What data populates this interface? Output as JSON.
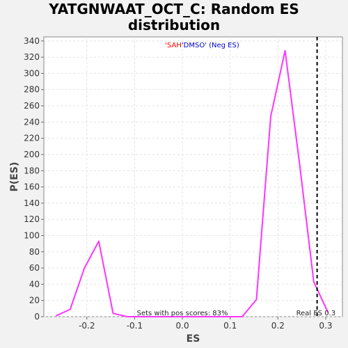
{
  "chart_data": {
    "type": "line",
    "title_lines": [
      "YATGNWAAT_OCT_C: Random ES",
      "distribution"
    ],
    "subtitle": {
      "part1": "'SAH",
      "part2": "'DMSO' (Neg ES)",
      "color1": "#ff0000",
      "color2": "#0000cc"
    },
    "xlabel": "ES",
    "ylabel": "P(ES)",
    "xlim": [
      -0.29,
      0.335
    ],
    "ylim": [
      0,
      345
    ],
    "xticks": [
      -0.2,
      -0.1,
      0.0,
      0.1,
      0.2,
      0.3
    ],
    "xtick_labels": [
      "-0.2",
      "-0.1",
      "0.0",
      "0.1",
      "0.2",
      "0.3"
    ],
    "yticks": [
      0,
      20,
      40,
      60,
      80,
      100,
      120,
      140,
      160,
      180,
      200,
      220,
      240,
      260,
      280,
      300,
      320,
      340
    ],
    "grid": true,
    "series": [
      {
        "color": "#ff33ff",
        "x": [
          -0.265,
          -0.235,
          -0.205,
          -0.175,
          -0.145,
          -0.115,
          -0.085,
          -0.055,
          -0.025,
          0.005,
          0.035,
          0.065,
          0.095,
          0.125,
          0.155,
          0.185,
          0.215,
          0.245,
          0.275,
          0.305
        ],
        "y": [
          1,
          9,
          60,
          93,
          4,
          0,
          0,
          0,
          0,
          0,
          0,
          0,
          0,
          0,
          21,
          247,
          328,
          190,
          43,
          5
        ]
      }
    ],
    "real_es": {
      "x": 0.282,
      "label": "Real ES 0.3"
    },
    "annotation": "Sets with pos scores: 83%"
  }
}
